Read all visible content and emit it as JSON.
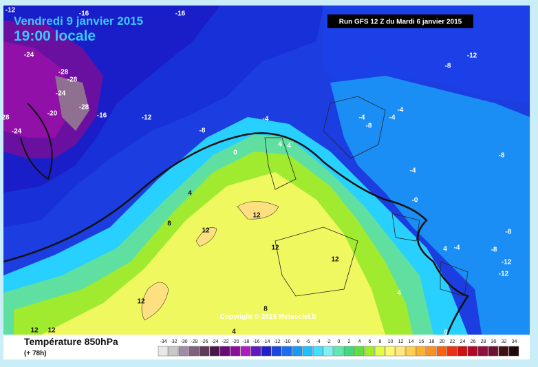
{
  "header": {
    "date": "Vendredi 9 janvier 2015",
    "time": "19:00 locale",
    "run": "Run GFS 12 Z du Mardi 6 janvier 2015"
  },
  "map": {
    "contour_labels": [
      "-12",
      "-16",
      "-16",
      "-24",
      "-28",
      "-28",
      "-24",
      "-28",
      "-20",
      "-16",
      "-24",
      "28",
      "-12",
      "-8",
      "-4",
      "0",
      "4",
      "4",
      "8",
      "12",
      "12",
      "12",
      "12",
      "12",
      "8",
      "4",
      "0",
      "-4",
      "-4",
      "-8",
      "-4",
      "-8",
      "-12",
      "-8",
      "-4",
      "-0",
      "-8",
      "-8",
      "4",
      "-4",
      "-12",
      "-12",
      "12",
      "12",
      "4",
      "4"
    ],
    "copyright": "Copyright © 2015 Meteociel.fr"
  },
  "legend": {
    "title": "Température 850hPa",
    "subtitle": "(+ 78h)",
    "ticks": [
      -34,
      -32,
      -30,
      -28,
      -26,
      -24,
      -22,
      -20,
      -18,
      -16,
      -14,
      -12,
      -10,
      -8,
      -6,
      -4,
      -2,
      0,
      2,
      4,
      6,
      8,
      10,
      12,
      14,
      16,
      18,
      20,
      22,
      24,
      26,
      28,
      30,
      32,
      34
    ],
    "colors": [
      "#e8e8e8",
      "#c8c8c8",
      "#a08ca8",
      "#80607c",
      "#603858",
      "#4a1848",
      "#6a0a78",
      "#900ca0",
      "#b01cc0",
      "#6018c0",
      "#2020c8",
      "#1848e0",
      "#1870f0",
      "#1898f8",
      "#20c0ff",
      "#40e0ff",
      "#80f0f0",
      "#60e8b0",
      "#40d880",
      "#60e040",
      "#a0f020",
      "#e0ff40",
      "#fff870",
      "#ffe880",
      "#ffd050",
      "#ffb030",
      "#ff9020",
      "#ff6010",
      "#f03010",
      "#d01010",
      "#b00828",
      "#901040",
      "#701030",
      "#401010",
      "#200808"
    ]
  }
}
